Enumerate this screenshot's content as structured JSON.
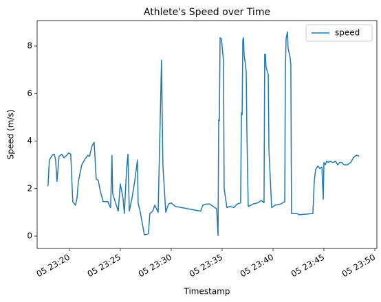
{
  "chart_data": {
    "type": "line",
    "title": "Athlete's Speed over Time",
    "x_label": "Timestamp",
    "y_label": "Speed (m/s)",
    "x": [
      "05 23:17:54",
      "05 23:18:02",
      "05 23:18:19",
      "05 23:18:31",
      "05 23:18:39",
      "05 23:18:47",
      "05 23:18:59",
      "05 23:19:15",
      "05 23:19:28",
      "05 23:19:44",
      "05 23:19:56",
      "05 23:20:08",
      "05 23:20:20",
      "05 23:20:36",
      "05 23:20:45",
      "05 23:20:53",
      "05 23:21:13",
      "05 23:21:33",
      "05 23:21:49",
      "05 23:21:58",
      "05 23:22:14",
      "05 23:22:26",
      "05 23:22:38",
      "05 23:22:50",
      "05 23:23:02",
      "05 23:23:19",
      "05 23:23:47",
      "05 23:23:55",
      "05 23:24:03",
      "05 23:24:11",
      "05 23:24:15",
      "05 23:24:32",
      "05 23:24:48",
      "05 23:25:00",
      "05 23:25:16",
      "05 23:25:24",
      "05 23:25:37",
      "05 23:25:45",
      "05 23:25:53",
      "05 23:26:09",
      "05 23:26:25",
      "05 23:26:41",
      "05 23:26:45",
      "05 23:26:58",
      "05 23:27:22",
      "05 23:27:46",
      "05 23:27:54",
      "05 23:28:11",
      "05 23:28:23",
      "05 23:28:43",
      "05 23:29:03",
      "05 23:29:11",
      "05 23:29:28",
      "05 23:29:44",
      "05 23:30:00",
      "05 23:30:24",
      "05 23:32:54",
      "05 23:33:06",
      "05 23:33:27",
      "05 23:33:47",
      "05 23:34:07",
      "05 23:34:28",
      "05 23:34:36",
      "05 23:34:40",
      "05 23:34:44",
      "05 23:34:48",
      "05 23:34:56",
      "05 23:35:08",
      "05 23:35:12",
      "05 23:35:28",
      "05 23:35:45",
      "05 23:36:09",
      "05 23:36:29",
      "05 23:36:49",
      "05 23:36:54",
      "05 23:36:58",
      "05 23:37:02",
      "05 23:37:06",
      "05 23:37:10",
      "05 23:37:18",
      "05 23:37:22",
      "05 23:37:26",
      "05 23:37:34",
      "05 23:37:50",
      "05 23:38:02",
      "05 23:38:31",
      "05 23:38:51",
      "05 23:39:07",
      "05 23:39:11",
      "05 23:39:15",
      "05 23:39:19",
      "05 23:39:32",
      "05 23:39:36",
      "05 23:39:52",
      "05 23:40:12",
      "05 23:40:45",
      "05 23:41:09",
      "05 23:41:13",
      "05 23:41:17",
      "05 23:41:25",
      "05 23:41:29",
      "05 23:41:41",
      "05 23:41:45",
      "05 23:41:49",
      "05 23:42:22",
      "05 23:42:34",
      "05 23:43:55",
      "05 23:44:03",
      "05 23:44:11",
      "05 23:44:24",
      "05 23:44:36",
      "05 23:44:48",
      "05 23:44:56",
      "05 23:45:00",
      "05 23:45:08",
      "05 23:45:16",
      "05 23:45:28",
      "05 23:45:37",
      "05 23:45:53",
      "05 23:46:09",
      "05 23:46:21",
      "05 23:46:33",
      "05 23:46:45",
      "05 23:46:58",
      "05 23:47:18",
      "05 23:47:38",
      "05 23:47:54",
      "05 23:48:10",
      "05 23:48:19",
      "05 23:48:27"
    ],
    "series": [
      {
        "name": "speed",
        "color": "#1f77b4",
        "values": [
          2.1,
          3.2,
          3.4,
          3.45,
          3.2,
          2.3,
          3.35,
          3.45,
          3.3,
          3.4,
          3.5,
          3.45,
          1.45,
          1.3,
          1.6,
          2.3,
          3.0,
          3.25,
          3.4,
          3.35,
          3.8,
          3.95,
          2.4,
          2.35,
          1.9,
          1.45,
          1.45,
          1.3,
          1.2,
          3.4,
          1.8,
          1.4,
          1.05,
          2.2,
          1.6,
          0.95,
          2.8,
          3.45,
          1.05,
          1.6,
          2.3,
          3.2,
          1.4,
          1.0,
          0.05,
          0.1,
          0.95,
          1.05,
          1.3,
          1.0,
          7.4,
          3.0,
          1.0,
          1.35,
          1.4,
          1.25,
          1.05,
          1.3,
          1.35,
          1.35,
          1.25,
          1.15,
          0.02,
          4.9,
          4.85,
          8.35,
          8.3,
          7.4,
          2.0,
          1.2,
          1.25,
          1.2,
          1.35,
          1.4,
          5.2,
          5.1,
          8.25,
          8.35,
          7.6,
          7.2,
          6.9,
          4.4,
          1.25,
          1.3,
          1.35,
          1.4,
          1.5,
          1.4,
          7.65,
          7.65,
          7.1,
          6.8,
          3.6,
          1.2,
          1.3,
          1.35,
          1.45,
          7.0,
          8.3,
          8.6,
          7.9,
          7.5,
          7.2,
          0.95,
          0.95,
          0.9,
          0.95,
          2.3,
          2.8,
          2.95,
          2.85,
          2.9,
          1.55,
          3.1,
          3.0,
          3.15,
          3.1,
          3.15,
          3.1,
          3.15,
          3.0,
          3.1,
          3.1,
          3.0,
          3.0,
          3.1,
          3.3,
          3.4,
          3.4,
          3.35
        ]
      }
    ],
    "xlim": [
      "05 23:16:50",
      "05 23:50:12"
    ],
    "xticks": [
      {
        "value": "05 23:20:00",
        "label": "05 23:20"
      },
      {
        "value": "05 23:25:00",
        "label": "05 23:25"
      },
      {
        "value": "05 23:30:00",
        "label": "05 23:30"
      },
      {
        "value": "05 23:35:00",
        "label": "05 23:35"
      },
      {
        "value": "05 23:40:00",
        "label": "05 23:40"
      },
      {
        "value": "05 23:45:00",
        "label": "05 23:45"
      },
      {
        "value": "05 23:50:00",
        "label": "05 23:50"
      }
    ],
    "ylim": [
      -0.52,
      9.07
    ],
    "yticks": [
      0,
      2,
      4,
      6,
      8
    ],
    "legend": "upper right"
  }
}
